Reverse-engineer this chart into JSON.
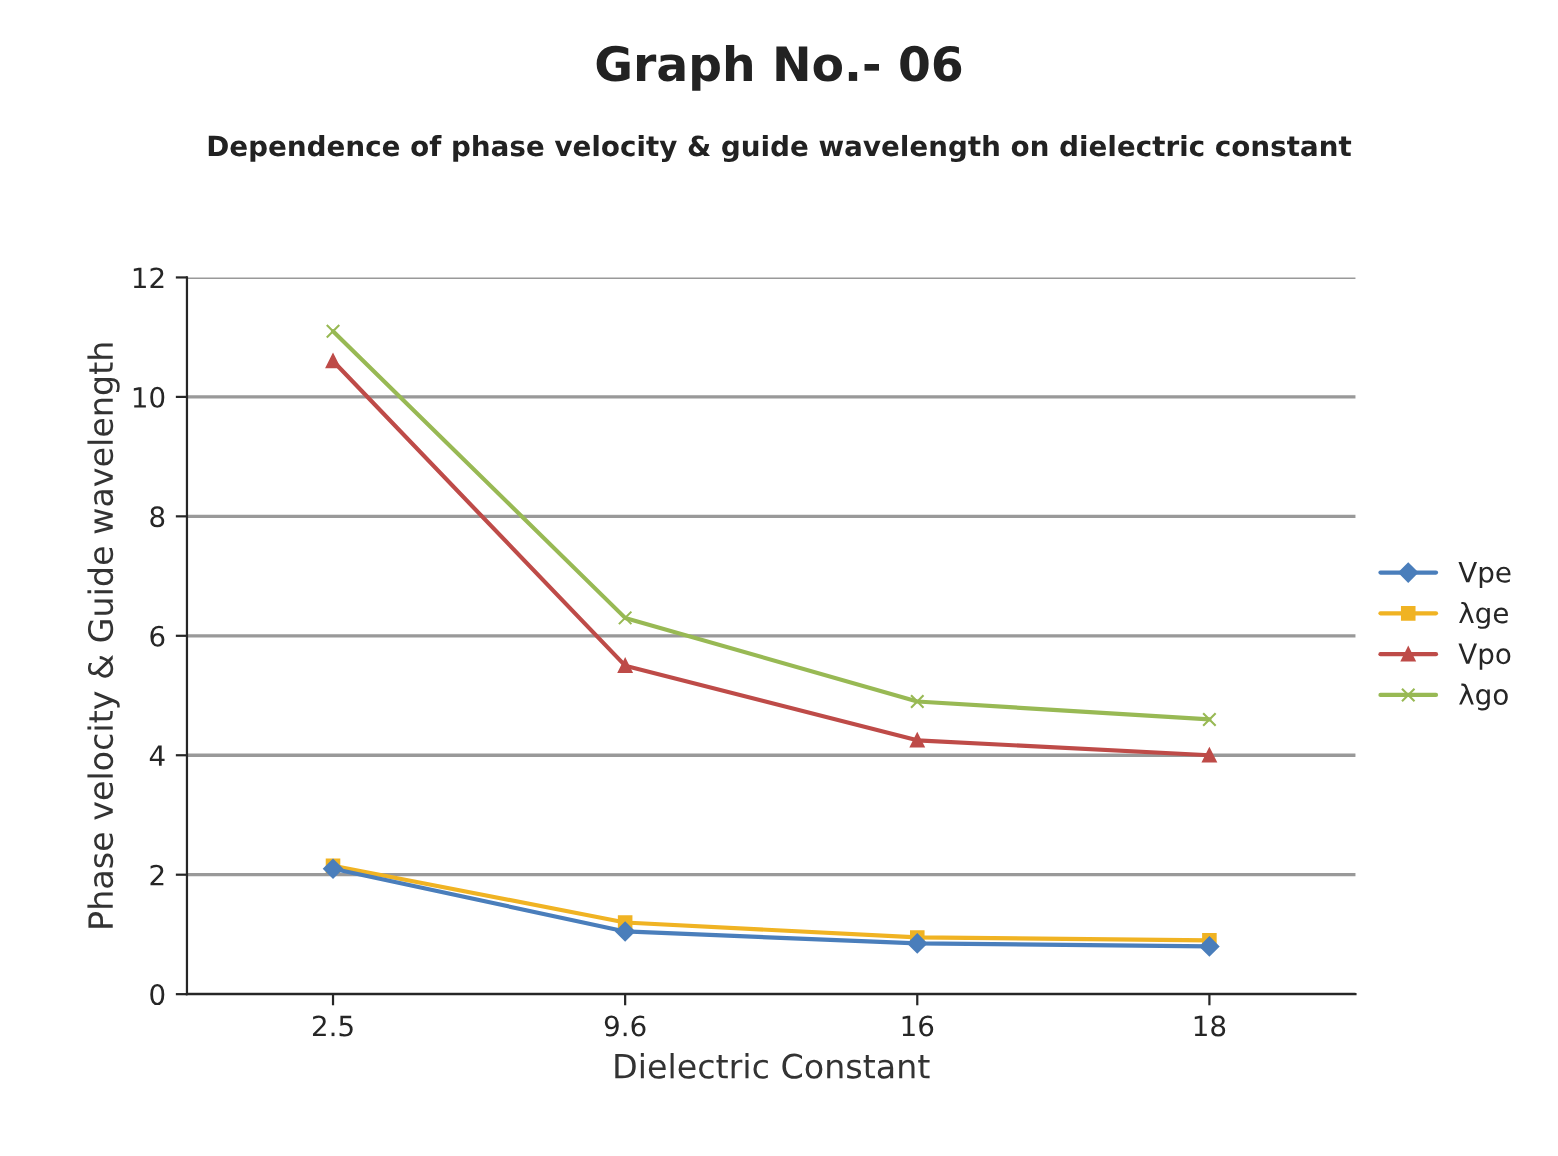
{
  "chart_data": {
    "type": "line",
    "title": "Graph No.- 06",
    "subtitle": "Dependence of phase velocity & guide wavelength on dielectric constant",
    "xlabel": "Dielectric Constant",
    "ylabel": "Phase velocity & Guide wavelength",
    "categories": [
      "2.5",
      "9.6",
      "16",
      "18"
    ],
    "series": [
      {
        "name": "Vpe",
        "color": "#4a7ebb",
        "marker": "diamond",
        "values": [
          2.1,
          1.05,
          0.85,
          0.8
        ]
      },
      {
        "name": "λge",
        "color": "#f0b323",
        "marker": "square",
        "values": [
          2.15,
          1.2,
          0.95,
          0.9
        ]
      },
      {
        "name": "Vpo",
        "color": "#be4b48",
        "marker": "triangle",
        "values": [
          10.6,
          5.5,
          4.25,
          4.0
        ]
      },
      {
        "name": "λgo",
        "color": "#98b954",
        "marker": "cross",
        "values": [
          11.1,
          6.3,
          4.9,
          4.6
        ]
      }
    ],
    "ylim": [
      0,
      12
    ],
    "yticks": [
      0,
      2,
      4,
      6,
      8,
      10,
      12
    ],
    "grid": "y",
    "legend": "right"
  }
}
